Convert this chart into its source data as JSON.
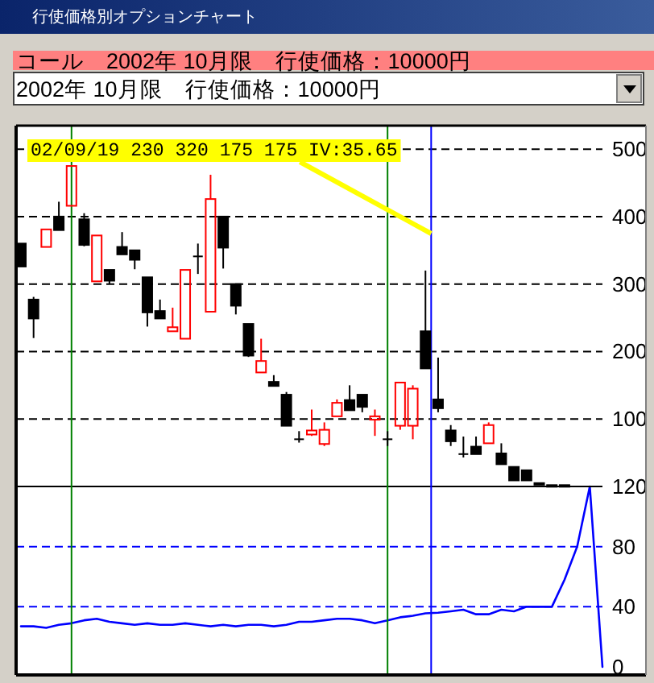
{
  "chart_data": [
    {
      "type": "candlestick",
      "title": "行使価格別オプションチャート",
      "subtitle": "コール　2002年 10月限　行使価格：10000円",
      "annotations": [
        "2002年 10月限　行使価格：10000円",
        "02/09/19 230 320 175 175 IV:35.65"
      ],
      "categories": [
        null,
        null,
        null,
        null,
        null,
        null,
        null,
        null,
        null,
        null,
        null,
        null,
        null,
        null,
        null,
        null,
        null,
        null,
        null,
        null,
        null,
        null,
        null,
        null,
        null,
        null,
        null,
        null,
        null,
        null,
        null,
        null,
        null,
        null,
        null,
        null,
        null,
        null,
        null,
        null,
        null,
        null,
        null,
        null,
        null,
        null,
        null
      ],
      "ohlc": [
        [
          360,
          360,
          326,
          326
        ],
        [
          277,
          281,
          220,
          249
        ],
        [
          355,
          381,
          355,
          381
        ],
        [
          400,
          422,
          380,
          380
        ],
        [
          416,
          475,
          416,
          475
        ],
        [
          396,
          405,
          356,
          358
        ],
        [
          304,
          372,
          304,
          372
        ],
        [
          321,
          321,
          300,
          305
        ],
        [
          355,
          377,
          344,
          344
        ],
        [
          350,
          350,
          322,
          336
        ],
        [
          310,
          310,
          237,
          258
        ],
        [
          260,
          277,
          249,
          249
        ],
        [
          230,
          265,
          230,
          236
        ],
        [
          219,
          321,
          219,
          321
        ],
        [
          341,
          360,
          315,
          341
        ],
        [
          259,
          462,
          259,
          426
        ],
        [
          400,
          400,
          323,
          354
        ],
        [
          300,
          300,
          255,
          268
        ],
        [
          241,
          241,
          192,
          194
        ],
        [
          169,
          219,
          169,
          186
        ],
        [
          155,
          165,
          149,
          149
        ],
        [
          136,
          140,
          90,
          90
        ],
        [
          70,
          82,
          65,
          70
        ],
        [
          77,
          114,
          75,
          83
        ],
        [
          63,
          95,
          60,
          84
        ],
        [
          104,
          129,
          104,
          124
        ],
        [
          128,
          150,
          113,
          113
        ],
        [
          136,
          136,
          110,
          118
        ],
        [
          99,
          114,
          75,
          104
        ],
        [
          70,
          82,
          60,
          70
        ],
        [
          90,
          154,
          84,
          154
        ],
        [
          90,
          150,
          70,
          145
        ],
        [
          230,
          320,
          175,
          175
        ],
        [
          129,
          191,
          110,
          116
        ],
        [
          83,
          91,
          60,
          67
        ],
        [
          48,
          74,
          43,
          48
        ],
        [
          59,
          74,
          48,
          48
        ],
        [
          64,
          95,
          64,
          91
        ],
        [
          49,
          64,
          33,
          33
        ],
        [
          29,
          29,
          9,
          9
        ],
        [
          24,
          24,
          9,
          9
        ],
        [
          5,
          5,
          3,
          3
        ],
        [
          2,
          2,
          1,
          1
        ],
        [
          2,
          2,
          1,
          1
        ],
        null,
        null,
        null
      ],
      "colors": [
        "#000000",
        "#000000",
        "#ff0000",
        "#000000",
        "#ff0000",
        "#000000",
        "#ff0000",
        "#000000",
        "#000000",
        "#000000",
        "#000000",
        "#000000",
        "#ff0000",
        "#ff0000",
        "#000000",
        "#ff0000",
        "#000000",
        "#000000",
        "#000000",
        "#ff0000",
        "#000000",
        "#000000",
        "#000000",
        "#ff0000",
        "#ff0000",
        "#ff0000",
        "#000000",
        "#000000",
        "#ff0000",
        "#000000",
        "#ff0000",
        "#ff0000",
        "#000000",
        "#000000",
        "#000000",
        "#000000",
        "#000000",
        "#ff0000",
        "#000000",
        "#000000",
        "#000000",
        "#000000",
        "#000000",
        "#000000",
        null,
        null,
        null
      ],
      "ylim": [
        0,
        530
      ],
      "yticks": [
        {
          "value": 0,
          "label": null
        },
        100,
        200,
        300,
        400,
        500
      ],
      "grid": "y"
    },
    {
      "type": "line",
      "categories": [
        null,
        null,
        null,
        null,
        null,
        null,
        null,
        null,
        null,
        null,
        null,
        null,
        null,
        null,
        null,
        null,
        null,
        null,
        null,
        null,
        null,
        null,
        null,
        null,
        null,
        null,
        null,
        null,
        null,
        null,
        null,
        null,
        null,
        null,
        null,
        null,
        null,
        null,
        null,
        null,
        null,
        null,
        null,
        null,
        null,
        null,
        null
      ],
      "series": [
        {
          "color": "#0000ff",
          "values": [
            27,
            27,
            26,
            28,
            29,
            31,
            32,
            30,
            29,
            28,
            29,
            28,
            28,
            29,
            28,
            27,
            28,
            27,
            28,
            28,
            27,
            28,
            30,
            30,
            31,
            32,
            32,
            31,
            29,
            31,
            33,
            34,
            35.65,
            36,
            37,
            38,
            35,
            35,
            38,
            37,
            40,
            40,
            40,
            58,
            80,
            120,
            0
          ]
        }
      ],
      "ylim": [
        0,
        120
      ],
      "yticks": [
        0,
        40,
        80,
        120
      ],
      "grid": "y"
    }
  ]
}
